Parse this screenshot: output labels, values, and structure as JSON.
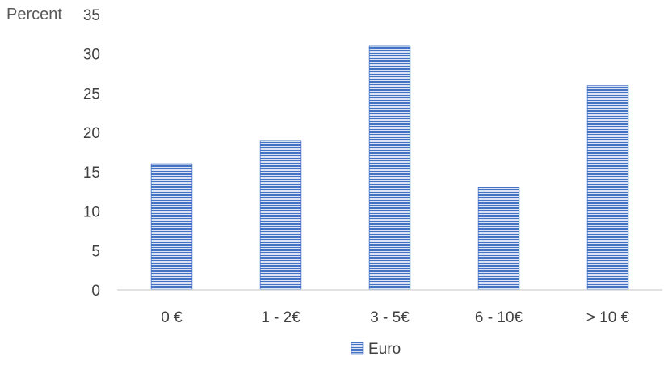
{
  "chart_data": {
    "type": "bar",
    "title": "",
    "xlabel": "",
    "ylabel": "Percent",
    "categories": [
      "0 €",
      "1 - 2€",
      "3 - 5€",
      "6 - 10€",
      "> 10 €"
    ],
    "series": [
      {
        "name": "Euro",
        "values": [
          16,
          19,
          31,
          13,
          26
        ],
        "color": "#4472C4"
      }
    ],
    "ylim": [
      0,
      35
    ],
    "yticks": [
      0,
      5,
      10,
      15,
      20,
      25,
      30,
      35
    ],
    "grid": false,
    "legend": "bottom-center"
  }
}
